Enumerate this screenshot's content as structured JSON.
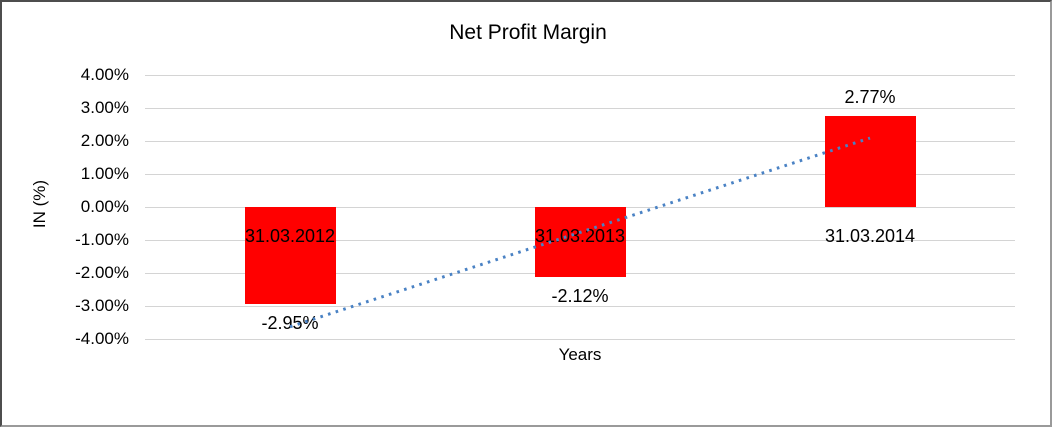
{
  "chart_data": {
    "type": "bar",
    "title": "Net Profit Margin",
    "xlabel": "Years",
    "ylabel": "IN (%)",
    "categories": [
      "31.03.2012",
      "31.03.2013",
      "31.03.2014"
    ],
    "values": [
      -2.95,
      -2.12,
      2.77
    ],
    "data_labels": [
      "-2.95%",
      "-2.12%",
      "2.77%"
    ],
    "ylim": [
      -4,
      4
    ],
    "ytick_step": 1,
    "ytick_labels": [
      "4.00%",
      "3.00%",
      "2.00%",
      "1.00%",
      "0.00%",
      "-1.00%",
      "-2.00%",
      "-3.00%",
      "-4.00%"
    ],
    "grid": true,
    "legend": "none",
    "colors": {
      "bar": "#FF0000",
      "trendline": "#4a82c4",
      "gridline": "#d4d4d4",
      "text": "#000000",
      "background": "#ffffff"
    },
    "trendline": {
      "style": "dotted",
      "start_value": -3.63,
      "end_value": 2.09
    }
  }
}
